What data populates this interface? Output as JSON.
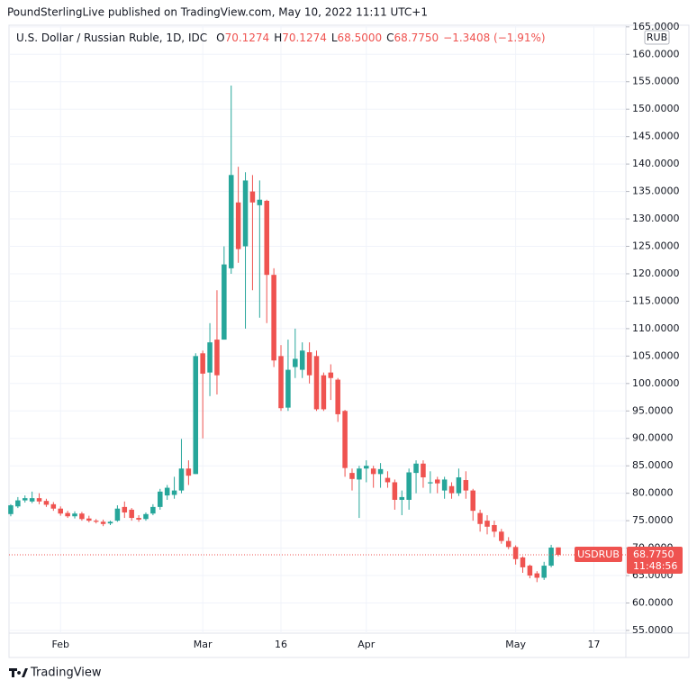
{
  "publisher_line": "PoundSterlingLive published on TradingView.com, May 10, 2022 11:11 UTC+1",
  "footer": "TradingView",
  "chart_data": {
    "type": "candlestick",
    "title": "U.S. Dollar / Russian Ruble, 1D, IDC",
    "ohlc_legend": [
      {
        "key": "O",
        "value": "70.1274"
      },
      {
        "key": "H",
        "value": "70.1274"
      },
      {
        "key": "L",
        "value": "68.5000"
      },
      {
        "key": "C",
        "value": "68.7750"
      }
    ],
    "change": "−1.3408 (−1.91%)",
    "currency": "RUB",
    "last_price": {
      "symbol": "USDRUB",
      "label": "68.7750",
      "countdown": "11:48:56"
    },
    "up_color": "#26a69a",
    "down_color": "#ef5350",
    "grid": true,
    "categories": [
      null,
      null,
      null,
      null,
      null,
      null,
      null,
      "Feb",
      null,
      null,
      null,
      null,
      null,
      null,
      null,
      null,
      null,
      null,
      null,
      null,
      null,
      null,
      null,
      null,
      null,
      null,
      null,
      "Mar",
      null,
      null,
      null,
      null,
      null,
      null,
      null,
      null,
      null,
      null,
      "16",
      null,
      null,
      null,
      null,
      null,
      null,
      null,
      null,
      null,
      null,
      null,
      "Apr",
      null,
      null,
      null,
      null,
      null,
      null,
      null,
      null,
      null,
      null,
      null,
      null,
      null,
      null,
      null,
      null,
      null,
      null,
      null,
      null,
      "May",
      null,
      null,
      null,
      null,
      null,
      null,
      null,
      null,
      null,
      null,
      "17",
      null,
      null,
      null,
      null
    ],
    "open": [
      76.2,
      77.6,
      78.7,
      78.5,
      79.1,
      78.6,
      78.0,
      77.2,
      76.4,
      75.8,
      76.3,
      75.4,
      75.0,
      74.8,
      74.5,
      75.0,
      77.5,
      77.0,
      75.5,
      75.3,
      76.3,
      77.5,
      79.6,
      79.7,
      80.5,
      84.5,
      83.5,
      105.5,
      102.0,
      108.0,
      108.0,
      121.0,
      133.0,
      125.0,
      135.0,
      132.5,
      133.3,
      119.8,
      105.0,
      95.6,
      103.0,
      102.5,
      105.7,
      105.0,
      101.5,
      102.0,
      100.7,
      95.0,
      83.7,
      82.5,
      84.5,
      84.5,
      83.5,
      82.8,
      82.0,
      78.8,
      78.8,
      83.7,
      85.4,
      81.8,
      82.5,
      80.5,
      81.3,
      80.0,
      82.4,
      80.5,
      76.4,
      75.0,
      74.2,
      73.0,
      71.3,
      70.2,
      68.3,
      66.8,
      65.4,
      64.6,
      66.8,
      70.1274,
      null,
      null,
      null,
      null,
      null,
      null,
      null,
      null,
      null
    ],
    "high": [
      78.0,
      79.3,
      79.6,
      80.3,
      80.0,
      79.0,
      78.4,
      77.6,
      76.8,
      76.7,
      76.6,
      75.9,
      75.3,
      75.2,
      75.0,
      77.8,
      78.5,
      77.3,
      76.0,
      76.5,
      78.0,
      80.8,
      81.5,
      83.0,
      89.9,
      86.0,
      105.5,
      106,
      111,
      117,
      125,
      154.3,
      139.5,
      138.5,
      138,
      137,
      133.5,
      121,
      107,
      108,
      110,
      107.5,
      107.5,
      106,
      102,
      103.5,
      101,
      95.2,
      84.5,
      85,
      86,
      85,
      85.5,
      84,
      82.5,
      80.5,
      84.5,
      86,
      86,
      84,
      83,
      83,
      82,
      84.5,
      84,
      80.8,
      77,
      76,
      75,
      73.5,
      72,
      70.5,
      68.5,
      67,
      65.8,
      67.5,
      70.6,
      70.1274,
      null,
      null,
      null,
      null,
      null,
      null,
      null,
      null,
      null
    ],
    "low": [
      75.8,
      77.3,
      78.3,
      78.2,
      78.0,
      77.5,
      76.8,
      75.9,
      75.5,
      75.4,
      75.0,
      74.7,
      74.5,
      74.0,
      74.2,
      74.8,
      75.5,
      75.0,
      74.8,
      75.0,
      76.0,
      77.0,
      78.8,
      79.0,
      80.0,
      81.5,
      83.5,
      90,
      97.7,
      98,
      108,
      120,
      122,
      110,
      117,
      112,
      111,
      103,
      95,
      95,
      101,
      101,
      100,
      95,
      95,
      97,
      93,
      83,
      80.5,
      75.5,
      82,
      81,
      81,
      81,
      77,
      76,
      77,
      80,
      81,
      80,
      80,
      79,
      79,
      79.5,
      79,
      75,
      73,
      72.5,
      72,
      70.8,
      69.8,
      67,
      65.5,
      64.5,
      63.8,
      64.2,
      66.5,
      68.5,
      null,
      null,
      null,
      null,
      null,
      null,
      null,
      null,
      null
    ],
    "close": [
      77.8,
      78.7,
      79.1,
      79.1,
      78.5,
      77.9,
      77.2,
      76.3,
      75.8,
      76.3,
      75.3,
      75.0,
      74.8,
      74.4,
      74.8,
      77.2,
      76.5,
      75.5,
      75.2,
      76.2,
      77.5,
      80.3,
      81.0,
      80.5,
      84.5,
      83.2,
      105.0,
      101.8,
      107.5,
      101.5,
      121.7,
      138,
      124.5,
      137,
      133,
      133.5,
      119.8,
      104.2,
      95.5,
      102.5,
      104.5,
      106,
      101.5,
      95.3,
      95.3,
      101,
      94.4,
      84.6,
      82.6,
      84.5,
      85,
      83.5,
      84.4,
      82,
      78.8,
      79.3,
      83.8,
      85.4,
      82.9,
      82,
      81.8,
      82.5,
      80,
      82.9,
      80.5,
      76.8,
      74.4,
      73.9,
      73,
      71.3,
      70.2,
      68.0,
      66.5,
      65.0,
      64.6,
      66.8,
      70.1,
      68.775,
      null,
      null,
      null,
      null,
      null,
      null,
      null,
      null,
      null
    ],
    "ylim": [
      54.5,
      165.3
    ],
    "yticks": [
      {
        "value": 55,
        "label": "55.0000"
      },
      {
        "value": 60,
        "label": "60.0000"
      },
      {
        "value": 65,
        "label": "65.0000"
      },
      {
        "value": 70,
        "label": "70.0000"
      },
      {
        "value": 75,
        "label": "75.0000"
      },
      {
        "value": 80,
        "label": "80.0000"
      },
      {
        "value": 85,
        "label": "85.0000"
      },
      {
        "value": 90,
        "label": "90.0000"
      },
      {
        "value": 95,
        "label": "95.0000"
      },
      {
        "value": 100,
        "label": "100.0000"
      },
      {
        "value": 105,
        "label": "105.0000"
      },
      {
        "value": 110,
        "label": "110.0000"
      },
      {
        "value": 115,
        "label": "115.0000"
      },
      {
        "value": 120,
        "label": "120.0000"
      },
      {
        "value": 125,
        "label": "125.0000"
      },
      {
        "value": 130,
        "label": "130.0000"
      },
      {
        "value": 135,
        "label": "135.0000"
      },
      {
        "value": 140,
        "label": "140.0000"
      },
      {
        "value": 145,
        "label": "145.0000"
      },
      {
        "value": 150,
        "label": "150.0000"
      },
      {
        "value": 155,
        "label": "155.0000"
      },
      {
        "value": 160,
        "label": "160.0000"
      },
      {
        "value": 165,
        "label": "165.0000"
      }
    ]
  }
}
